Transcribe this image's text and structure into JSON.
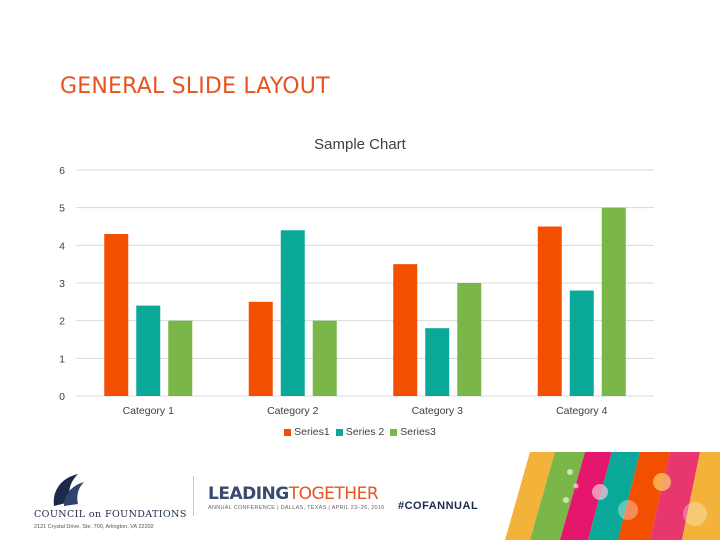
{
  "slide": {
    "title": "GENERAL SLIDE LAYOUT"
  },
  "chart_data": {
    "type": "bar",
    "title": "Sample Chart",
    "categories": [
      "Category 1",
      "Category 2",
      "Category 3",
      "Category 4"
    ],
    "series": [
      {
        "name": "Series1",
        "values": [
          4.3,
          2.5,
          3.5,
          4.5
        ],
        "color": "#f24f00"
      },
      {
        "name": "Series 2",
        "values": [
          2.4,
          4.4,
          1.8,
          2.8
        ],
        "color": "#0aa898"
      },
      {
        "name": "Series3",
        "values": [
          2,
          2,
          3,
          5
        ],
        "color": "#7ab648"
      }
    ],
    "ylim": [
      0,
      6
    ],
    "yticks": [
      "0",
      "1",
      "2",
      "3",
      "4",
      "5",
      "6"
    ],
    "grid": true,
    "legend_position": "bottom"
  },
  "footer": {
    "org_name": "COUNCIL on FOUNDATIONS",
    "org_address": "2121 Crystal Drive, Ste. 700, Arlington, VA 22202",
    "event_leading": "LEADING",
    "event_together": "TOGETHER",
    "event_subtitle": "ANNUAL CONFERENCE | DALLAS, TEXAS | APRIL 23–26, 2016",
    "hashtag": "#COFANNUAL"
  }
}
